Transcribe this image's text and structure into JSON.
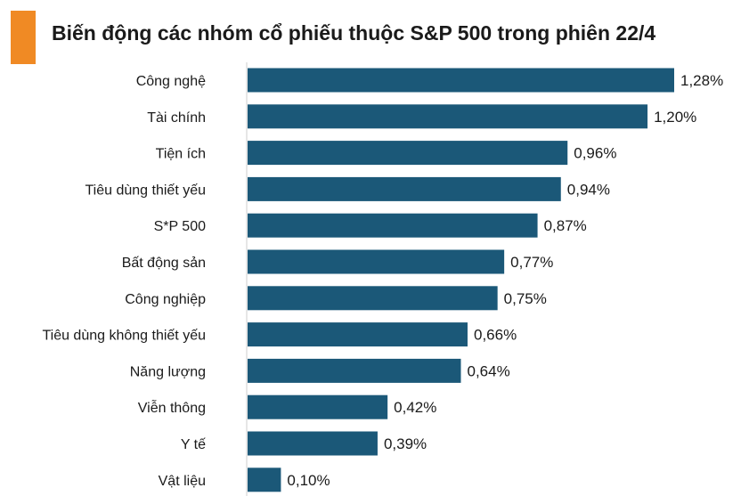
{
  "title": "Biến động các nhóm cổ phiếu thuộc S&P 500 trong phiên 22/4",
  "colors": {
    "accent": "#f08a24",
    "bar": "#1b5878",
    "axis": "#cccccc"
  },
  "chart_data": {
    "type": "bar",
    "orientation": "horizontal",
    "title": "Biến động các nhóm cổ phiếu thuộc S&P 500 trong phiên 22/4",
    "xlabel": "",
    "ylabel": "",
    "grid": false,
    "legend": "none",
    "xlim": [
      0,
      1.28
    ],
    "categories": [
      "Công nghệ",
      "Tài chính",
      "Tiện ích",
      "Tiêu dùng thiết yếu",
      "S*P 500",
      "Bất động sản",
      "Công nghiệp",
      "Tiêu dùng không thiết yếu",
      "Năng lượng",
      "Viễn thông",
      "Y tế",
      "Vật liệu"
    ],
    "values": [
      1.28,
      1.2,
      0.96,
      0.94,
      0.87,
      0.77,
      0.75,
      0.66,
      0.64,
      0.42,
      0.39,
      0.1
    ],
    "value_labels": [
      "1,28%",
      "1,20%",
      "0,96%",
      "0,94%",
      "0,87%",
      "0,77%",
      "0,75%",
      "0,66%",
      "0,64%",
      "0,42%",
      "0,39%",
      "0,10%"
    ]
  }
}
